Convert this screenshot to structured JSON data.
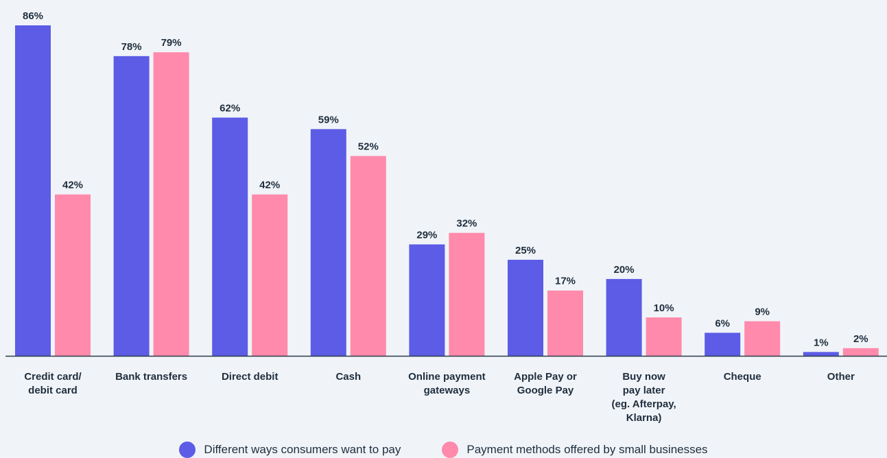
{
  "chart_data": {
    "type": "bar",
    "categories": [
      [
        "Credit card/",
        "debit card"
      ],
      [
        "Bank transfers"
      ],
      [
        "Direct debit"
      ],
      [
        "Cash"
      ],
      [
        "Online payment",
        "gateways"
      ],
      [
        "Apple Pay or",
        "Google Pay"
      ],
      [
        "Buy now",
        "pay later",
        "(eg. Afterpay,",
        "Klarna)"
      ],
      [
        "Cheque"
      ],
      [
        "Other"
      ]
    ],
    "series": [
      {
        "name": "Different ways consumers want to pay",
        "color": "#5c5ce6",
        "values": [
          86,
          78,
          62,
          59,
          29,
          25,
          20,
          6,
          1
        ]
      },
      {
        "name": "Payment methods offered by small businesses",
        "color": "#ff8aab",
        "values": [
          42,
          79,
          42,
          52,
          32,
          17,
          10,
          9,
          2
        ]
      }
    ],
    "value_suffix": "%",
    "ylim": [
      0,
      86
    ],
    "grid": false,
    "legend_position": "bottom"
  }
}
